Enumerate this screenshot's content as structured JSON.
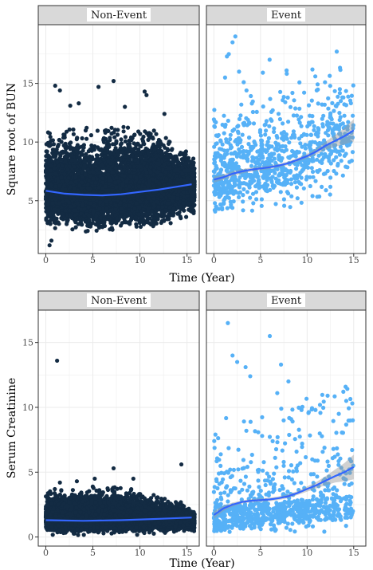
{
  "colors": {
    "non_event_points": "#132B43",
    "event_points": "#56B1F7",
    "smooth_line": "#3366FF",
    "confidence_band": "#999999",
    "strip_fill": "#D9D9D9",
    "panel_border": "#333333",
    "grid": "#EBEBEB"
  },
  "chart_data": [
    {
      "type": "scatter",
      "facets": [
        "Non-Event",
        "Event"
      ],
      "xlabel": "Time (Year)",
      "ylabel": "Square root of BUN",
      "x_ticks": [
        0,
        5,
        10,
        15
      ],
      "y_ticks": [
        5,
        10,
        15
      ],
      "xlim": [
        -0.8,
        16.3
      ],
      "ylim": [
        0.5,
        20.0
      ],
      "grid": true,
      "panels": [
        {
          "facet": "Non-Event",
          "n_points_approx": 7000,
          "point_cloud_band": {
            "x": [
              0,
              4,
              8,
              12,
              15.8
            ],
            "y_low": [
              2.8,
              2.6,
              2.8,
              3.0,
              3.8
            ],
            "y_high": [
              10.5,
              11.0,
              11.0,
              10.8,
              8.5
            ],
            "y_center": [
              5.9,
              5.5,
              5.6,
              6.0,
              6.4
            ]
          },
          "smooth": {
            "x": [
              0,
              2,
              4,
              6,
              8,
              10,
              12,
              14,
              15.5
            ],
            "y": [
              5.85,
              5.6,
              5.5,
              5.45,
              5.55,
              5.75,
              5.95,
              6.2,
              6.4
            ]
          },
          "outliers": [
            [
              1,
              14.8
            ],
            [
              1.5,
              14.4
            ],
            [
              2.6,
              13.1
            ],
            [
              5.6,
              14.7
            ],
            [
              7.2,
              15.2
            ],
            [
              10.5,
              14.3
            ],
            [
              10.7,
              14.0
            ],
            [
              3.5,
              13.3
            ],
            [
              8.4,
              13.0
            ],
            [
              12.6,
              12.4
            ],
            [
              0.4,
              1.2
            ],
            [
              0.6,
              1.6
            ]
          ]
        },
        {
          "facet": "Event",
          "n_points_approx": 900,
          "smooth": {
            "x": [
              0,
              1,
              2,
              3,
              4,
              5,
              6,
              7,
              8,
              9,
              10,
              11,
              12,
              13,
              14,
              15
            ],
            "y": [
              6.8,
              7.0,
              7.3,
              7.5,
              7.65,
              7.75,
              7.85,
              8.0,
              8.2,
              8.5,
              8.8,
              9.2,
              9.7,
              10.1,
              10.5,
              11.0
            ]
          },
          "band_halfwidth": {
            "x": [
              0,
              5,
              9,
              11,
              12,
              13,
              14,
              15
            ],
            "w": [
              0.25,
              0.15,
              0.15,
              0.25,
              0.35,
              0.5,
              0.7,
              0.95
            ]
          },
          "outliers": [
            [
              2.3,
              19.0
            ],
            [
              2.0,
              18.5
            ],
            [
              1.6,
              17.5
            ],
            [
              1.4,
              17.3
            ],
            [
              2.7,
              16.0
            ],
            [
              1.2,
              15.5
            ],
            [
              3.2,
              15.1
            ],
            [
              7.8,
              16.1
            ],
            [
              3.5,
              14.4
            ]
          ]
        }
      ]
    },
    {
      "type": "scatter",
      "facets": [
        "Non-Event",
        "Event"
      ],
      "xlabel": "Time (Year)",
      "ylabel": "Serum Creatinine",
      "x_ticks": [
        0,
        5,
        10,
        15
      ],
      "y_ticks": [
        0,
        5,
        10,
        15
      ],
      "xlim": [
        -0.8,
        16.3
      ],
      "ylim": [
        -0.7,
        17.5
      ],
      "grid": true,
      "panels": [
        {
          "facet": "Non-Event",
          "n_points_approx": 7000,
          "point_cloud_band": {
            "x": [
              0,
              4,
              8,
              12,
              15.8
            ],
            "y_low": [
              0.4,
              0.4,
              0.4,
              0.4,
              0.6
            ],
            "y_high": [
              3.4,
              3.6,
              3.6,
              3.0,
              2.0
            ],
            "y_center": [
              1.3,
              1.3,
              1.35,
              1.45,
              1.5
            ]
          },
          "smooth": {
            "x": [
              0,
              4,
              8,
              12,
              15.5
            ],
            "y": [
              1.3,
              1.25,
              1.3,
              1.4,
              1.5
            ]
          },
          "outliers": [
            [
              1.2,
              13.6
            ],
            [
              7.2,
              5.3
            ],
            [
              14.4,
              5.6
            ],
            [
              9.3,
              4.5
            ],
            [
              1.5,
              4.2
            ],
            [
              3.3,
              4.3
            ],
            [
              5.2,
              4.5
            ]
          ]
        },
        {
          "facet": "Event",
          "n_points_approx": 900,
          "smooth": {
            "x": [
              0,
              1,
              2,
              3,
              4,
              5,
              6,
              7,
              8,
              9,
              10,
              11,
              12,
              13,
              14,
              15
            ],
            "y": [
              1.7,
              2.2,
              2.5,
              2.7,
              2.8,
              2.85,
              2.9,
              3.0,
              3.15,
              3.4,
              3.7,
              4.0,
              4.35,
              4.7,
              5.0,
              5.4
            ]
          },
          "band_halfwidth": {
            "x": [
              0,
              1,
              3,
              9,
              11,
              12,
              13,
              14,
              15
            ],
            "w": [
              0.3,
              0.2,
              0.12,
              0.15,
              0.25,
              0.35,
              0.5,
              0.7,
              0.95
            ]
          },
          "outliers": [
            [
              1.5,
              16.5
            ],
            [
              6.0,
              15.5
            ],
            [
              2.0,
              14.0
            ],
            [
              2.5,
              13.5
            ],
            [
              3.4,
              13.1
            ],
            [
              7.2,
              13.3
            ],
            [
              8.0,
              12.0
            ],
            [
              3.9,
              12.4
            ],
            [
              6.8,
              11.1
            ],
            [
              12.2,
              10.9
            ],
            [
              14.2,
              10.5
            ],
            [
              9.4,
              9.8
            ],
            [
              10.9,
              9.8
            ],
            [
              13.4,
              9.5
            ],
            [
              14.9,
              9.0
            ]
          ]
        }
      ]
    }
  ]
}
